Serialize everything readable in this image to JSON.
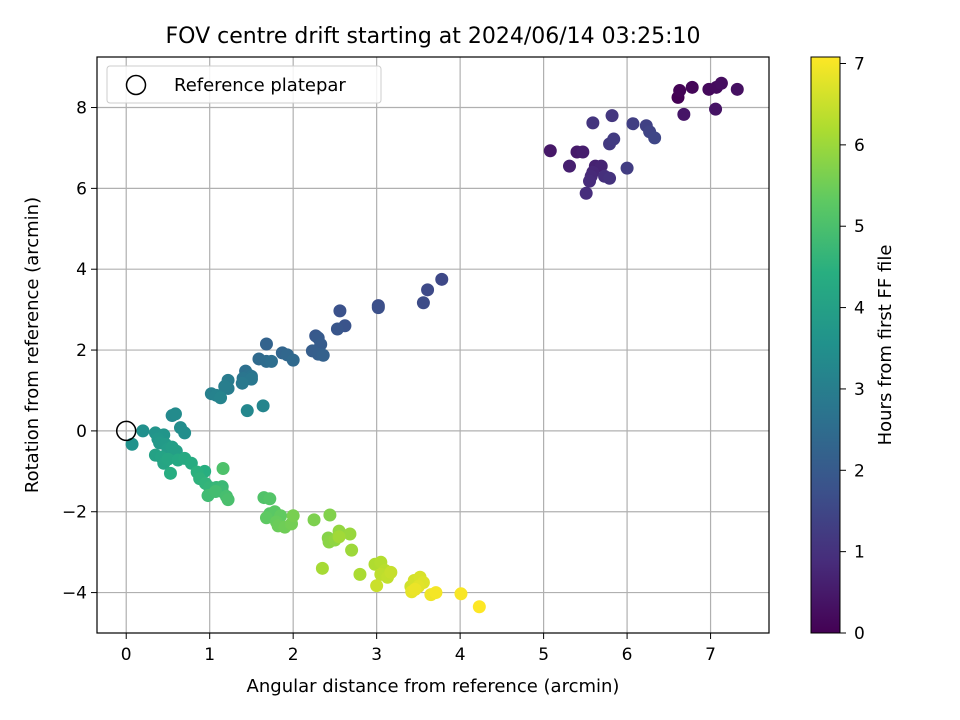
{
  "chart_data": {
    "type": "scatter",
    "title": "FOV centre drift starting at 2024/06/14 03:25:10",
    "xlabel": "Angular distance from reference (arcmin)",
    "ylabel": "Rotation from reference (arcmin)",
    "xlim": [
      -0.35,
      7.7
    ],
    "ylim": [
      -5.0,
      9.25
    ],
    "x_ticks": [
      0,
      1,
      2,
      3,
      4,
      5,
      6,
      7
    ],
    "y_ticks": [
      -4,
      -2,
      0,
      2,
      4,
      6,
      8
    ],
    "grid": true,
    "legend": {
      "placement": "upper-left",
      "entries": [
        "Reference platepar"
      ]
    },
    "reference_point": {
      "x": 0,
      "y": 0
    },
    "colorbar": {
      "label": "Hours from first FF file",
      "colormap": "viridis",
      "range": [
        0,
        7.08
      ],
      "ticks": [
        0,
        1,
        2,
        3,
        4,
        5,
        6,
        7
      ]
    },
    "series": [
      {
        "points": [
          [
            6.61,
            8.25
          ],
          [
            6.63,
            8.42
          ],
          [
            6.78,
            8.5
          ],
          [
            6.98,
            8.45
          ],
          [
            7.07,
            8.5
          ],
          [
            7.13,
            8.6
          ],
          [
            7.32,
            8.45
          ],
          [
            7.06,
            7.96
          ],
          [
            6.68,
            7.83
          ],
          [
            5.08,
            6.93
          ],
          [
            5.4,
            6.9
          ],
          [
            5.47,
            6.9
          ],
          [
            5.31,
            6.55
          ],
          [
            5.62,
            6.55
          ],
          [
            5.69,
            6.55
          ],
          [
            5.59,
            6.4
          ],
          [
            5.57,
            6.3
          ],
          [
            5.55,
            6.18
          ],
          [
            5.51,
            5.88
          ],
          [
            5.73,
            6.3
          ],
          [
            5.79,
            6.25
          ],
          [
            5.59,
            7.62
          ],
          [
            5.82,
            7.8
          ],
          [
            5.79,
            7.1
          ],
          [
            5.84,
            7.22
          ],
          [
            6.0,
            6.5
          ],
          [
            6.07,
            7.6
          ],
          [
            6.23,
            7.55
          ],
          [
            6.27,
            7.4
          ],
          [
            6.33,
            7.25
          ],
          [
            3.78,
            3.75
          ],
          [
            3.61,
            3.49
          ],
          [
            3.56,
            3.17
          ],
          [
            3.02,
            3.1
          ],
          [
            3.02,
            3.05
          ],
          [
            2.56,
            2.97
          ],
          [
            2.62,
            2.6
          ],
          [
            2.53,
            2.52
          ],
          [
            2.27,
            2.35
          ],
          [
            2.3,
            2.3
          ],
          [
            2.33,
            2.14
          ],
          [
            2.23,
            1.98
          ],
          [
            2.3,
            1.9
          ],
          [
            2.36,
            1.87
          ],
          [
            1.68,
            2.15
          ],
          [
            1.87,
            1.93
          ],
          [
            1.93,
            1.88
          ],
          [
            2.0,
            1.75
          ],
          [
            1.59,
            1.78
          ],
          [
            1.68,
            1.72
          ],
          [
            1.74,
            1.72
          ],
          [
            1.43,
            1.48
          ],
          [
            1.47,
            1.38
          ],
          [
            1.5,
            1.35
          ],
          [
            1.4,
            1.3
          ],
          [
            1.5,
            1.28
          ],
          [
            1.39,
            1.18
          ],
          [
            1.22,
            1.25
          ],
          [
            1.22,
            1.05
          ],
          [
            1.18,
            1.1
          ],
          [
            1.02,
            0.92
          ],
          [
            1.08,
            0.88
          ],
          [
            1.13,
            0.82
          ],
          [
            1.64,
            0.62
          ],
          [
            1.45,
            0.5
          ],
          [
            0.55,
            0.38
          ],
          [
            0.59,
            0.42
          ],
          [
            0.65,
            0.08
          ],
          [
            0.7,
            -0.05
          ],
          [
            0.2,
            0.0
          ],
          [
            0.07,
            -0.33
          ],
          [
            0.35,
            -0.05
          ],
          [
            0.45,
            -0.1
          ],
          [
            0.38,
            -0.2
          ],
          [
            0.4,
            -0.3
          ],
          [
            0.47,
            -0.33
          ],
          [
            0.5,
            -0.45
          ],
          [
            0.55,
            -0.4
          ],
          [
            0.6,
            -0.5
          ],
          [
            0.35,
            -0.6
          ],
          [
            0.42,
            -0.65
          ],
          [
            0.45,
            -0.8
          ],
          [
            0.5,
            -0.7
          ],
          [
            0.62,
            -0.72
          ],
          [
            0.7,
            -0.68
          ],
          [
            0.78,
            -0.8
          ],
          [
            0.53,
            -1.05
          ],
          [
            0.94,
            -1.0
          ],
          [
            0.85,
            -1.02
          ],
          [
            0.88,
            -1.18
          ],
          [
            0.95,
            -1.3
          ],
          [
            1.0,
            -1.4
          ],
          [
            1.08,
            -1.4
          ],
          [
            1.15,
            -1.38
          ],
          [
            1.15,
            -1.5
          ],
          [
            0.98,
            -1.6
          ],
          [
            1.07,
            -1.5
          ],
          [
            1.2,
            -1.62
          ],
          [
            1.22,
            -1.7
          ],
          [
            1.16,
            -0.93
          ],
          [
            1.65,
            -1.65
          ],
          [
            1.72,
            -1.68
          ],
          [
            1.72,
            -2.05
          ],
          [
            1.78,
            -2.0
          ],
          [
            1.68,
            -2.15
          ],
          [
            1.85,
            -2.1
          ],
          [
            1.8,
            -2.25
          ],
          [
            1.82,
            -2.35
          ],
          [
            1.9,
            -2.38
          ],
          [
            1.98,
            -2.3
          ],
          [
            2.0,
            -2.1
          ],
          [
            2.25,
            -2.2
          ],
          [
            2.44,
            -2.08
          ],
          [
            2.42,
            -2.65
          ],
          [
            2.43,
            -2.75
          ],
          [
            2.5,
            -2.7
          ],
          [
            2.55,
            -2.48
          ],
          [
            2.68,
            -2.55
          ],
          [
            2.7,
            -2.95
          ],
          [
            2.55,
            -2.62
          ],
          [
            2.35,
            -3.4
          ],
          [
            2.8,
            -3.55
          ],
          [
            2.98,
            -3.3
          ],
          [
            3.05,
            -3.25
          ],
          [
            3.1,
            -3.45
          ],
          [
            3.05,
            -3.55
          ],
          [
            3.13,
            -3.62
          ],
          [
            3.17,
            -3.5
          ],
          [
            3.0,
            -3.83
          ],
          [
            3.41,
            -3.85
          ],
          [
            3.45,
            -3.7
          ],
          [
            3.52,
            -3.62
          ],
          [
            3.56,
            -3.75
          ],
          [
            3.5,
            -3.85
          ],
          [
            3.42,
            -3.98
          ],
          [
            3.46,
            -3.92
          ],
          [
            3.65,
            -4.05
          ],
          [
            3.71,
            -4.0
          ],
          [
            4.01,
            -4.03
          ],
          [
            4.23,
            -4.35
          ]
        ]
      }
    ]
  }
}
